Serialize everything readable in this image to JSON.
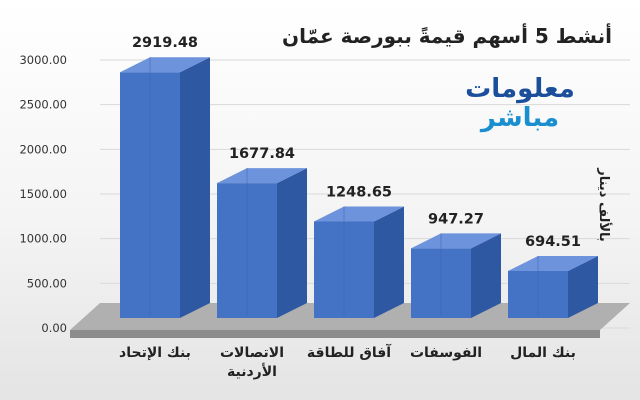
{
  "chart_data": {
    "type": "bar",
    "title": "أنشط 5 أسهم قيمةً ببورصة عمّان",
    "ylabel": "بالألف دينار",
    "xlabel": "",
    "categories": [
      "بنك الإتحاد",
      "الاتصالات الأردنية",
      "آفاق للطاقة",
      "الفوسفات",
      "بنك المال"
    ],
    "category_lines": [
      [
        "بنك الإتحاد"
      ],
      [
        "الاتصالات",
        "الأردنية"
      ],
      [
        "آفاق للطاقة"
      ],
      [
        "الفوسفات"
      ],
      [
        "بنك المال"
      ]
    ],
    "values": [
      2919.48,
      1677.84,
      1248.65,
      947.27,
      694.51
    ],
    "value_labels": [
      "2919.48",
      "1677.84",
      "1248.65",
      "947.27",
      "694.51"
    ],
    "y_ticks": [
      "0.00",
      "500.00",
      "1000.00",
      "1500.00",
      "2000.00",
      "2500.00",
      "3000.00"
    ],
    "ylim": [
      0,
      3000
    ],
    "grid": true,
    "bar_color": "#4472c4",
    "bar_color_dark": "#2f58a3",
    "bar_color_top": "#6d93dc",
    "floor_color": "#8c8c8c"
  },
  "logo": {
    "line1": "معلومات",
    "line2": "مباشر"
  }
}
